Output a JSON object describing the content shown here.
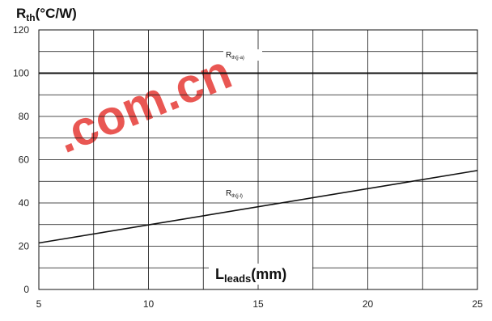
{
  "chart_data": {
    "type": "line",
    "ylabel_main": "R",
    "ylabel_sub": "th",
    "ylabel_unit": "(°C/W)",
    "xlabel_main": "L",
    "xlabel_sub": "leads",
    "xlabel_unit": "(mm)",
    "xlim": [
      5,
      25
    ],
    "ylim": [
      0,
      120
    ],
    "xticks": [
      "5",
      "10",
      "15",
      "20",
      "25"
    ],
    "yticks": [
      "0",
      "20",
      "40",
      "60",
      "80",
      "100",
      "120"
    ],
    "grid": true,
    "series": [
      {
        "name": "Rth(j-a)",
        "label_main": "R",
        "label_sub": "th(j-a)",
        "x": [
          5,
          25
        ],
        "y": [
          100,
          100
        ]
      },
      {
        "name": "Rth(j-l)",
        "label_main": "R",
        "label_sub": "th(j-l)",
        "x": [
          5,
          25
        ],
        "y": [
          21.5,
          55
        ]
      }
    ]
  },
  "watermark": {
    "text": ".com.cn",
    "color": "#e53935"
  }
}
